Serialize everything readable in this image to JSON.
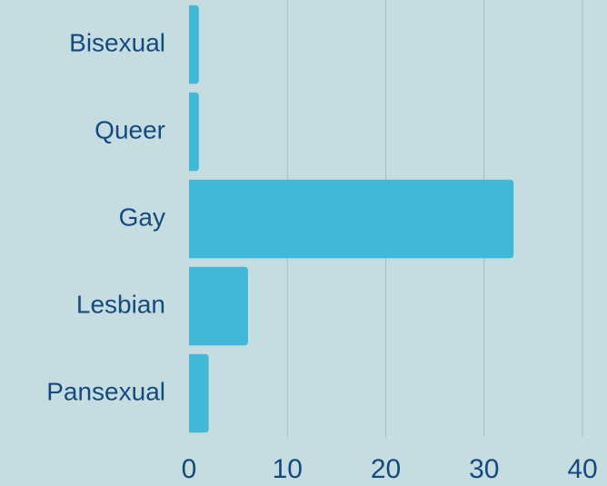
{
  "chart_data": {
    "type": "bar",
    "orientation": "horizontal",
    "categories": [
      "Bisexual",
      "Queer",
      "Gay",
      "Lesbian",
      "Pansexual"
    ],
    "values": [
      1,
      1,
      33,
      6,
      2
    ],
    "color": "#42b8d6",
    "xlim": [
      0,
      40
    ],
    "xticks": [
      0,
      10,
      20,
      30,
      40
    ],
    "grid": true
  }
}
